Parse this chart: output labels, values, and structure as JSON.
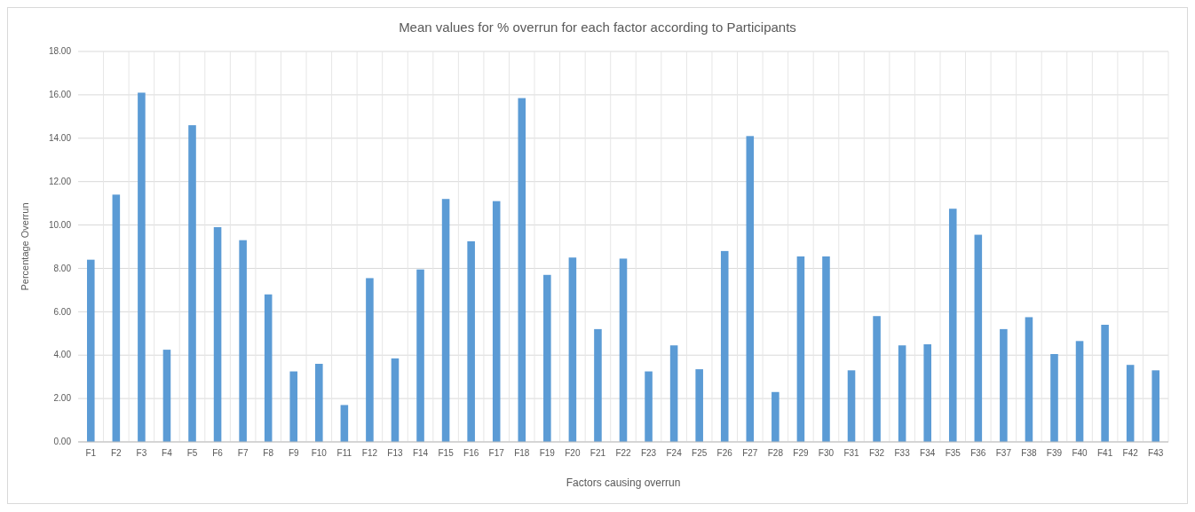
{
  "chart_data": {
    "type": "bar",
    "title": "Mean values for % overrun for each factor according to Participants",
    "xlabel": "Factors causing overrun",
    "ylabel": "Percentage Overrun",
    "categories": [
      "F1",
      "F2",
      "F3",
      "F4",
      "F5",
      "F6",
      "F7",
      "F8",
      "F9",
      "F10",
      "F11",
      "F12",
      "F13",
      "F14",
      "F15",
      "F16",
      "F17",
      "F18",
      "F19",
      "F20",
      "F21",
      "F22",
      "F23",
      "F24",
      "F25",
      "F26",
      "F27",
      "F28",
      "F29",
      "F30",
      "F31",
      "F32",
      "F33",
      "F34",
      "F35",
      "F36",
      "F37",
      "F38",
      "F39",
      "F40",
      "F41",
      "F42",
      "F43"
    ],
    "values": [
      8.4,
      11.4,
      16.1,
      4.25,
      14.6,
      9.9,
      9.3,
      6.8,
      3.25,
      3.6,
      1.7,
      7.55,
      3.85,
      7.95,
      11.2,
      9.25,
      11.1,
      15.85,
      7.7,
      8.5,
      5.2,
      8.45,
      3.25,
      4.45,
      3.35,
      8.8,
      14.1,
      2.3,
      8.55,
      8.55,
      3.3,
      5.8,
      4.45,
      4.5,
      10.75,
      9.55,
      5.2,
      5.75,
      4.05,
      4.65,
      5.4,
      3.55,
      3.3
    ],
    "color": "#5b9bd5",
    "ylim": [
      0,
      18
    ],
    "yticks": [
      {
        "value": 0,
        "label": "0.00"
      },
      {
        "value": 2,
        "label": "2.00"
      },
      {
        "value": 4,
        "label": "4.00"
      },
      {
        "value": 6,
        "label": "6.00"
      },
      {
        "value": 8,
        "label": "8.00"
      },
      {
        "value": 10,
        "label": "10.00"
      },
      {
        "value": 12,
        "label": "12.00"
      },
      {
        "value": 14,
        "label": "14.00"
      },
      {
        "value": 16,
        "label": "16.00"
      },
      {
        "value": 18,
        "label": "18.00"
      }
    ],
    "grid": true
  }
}
